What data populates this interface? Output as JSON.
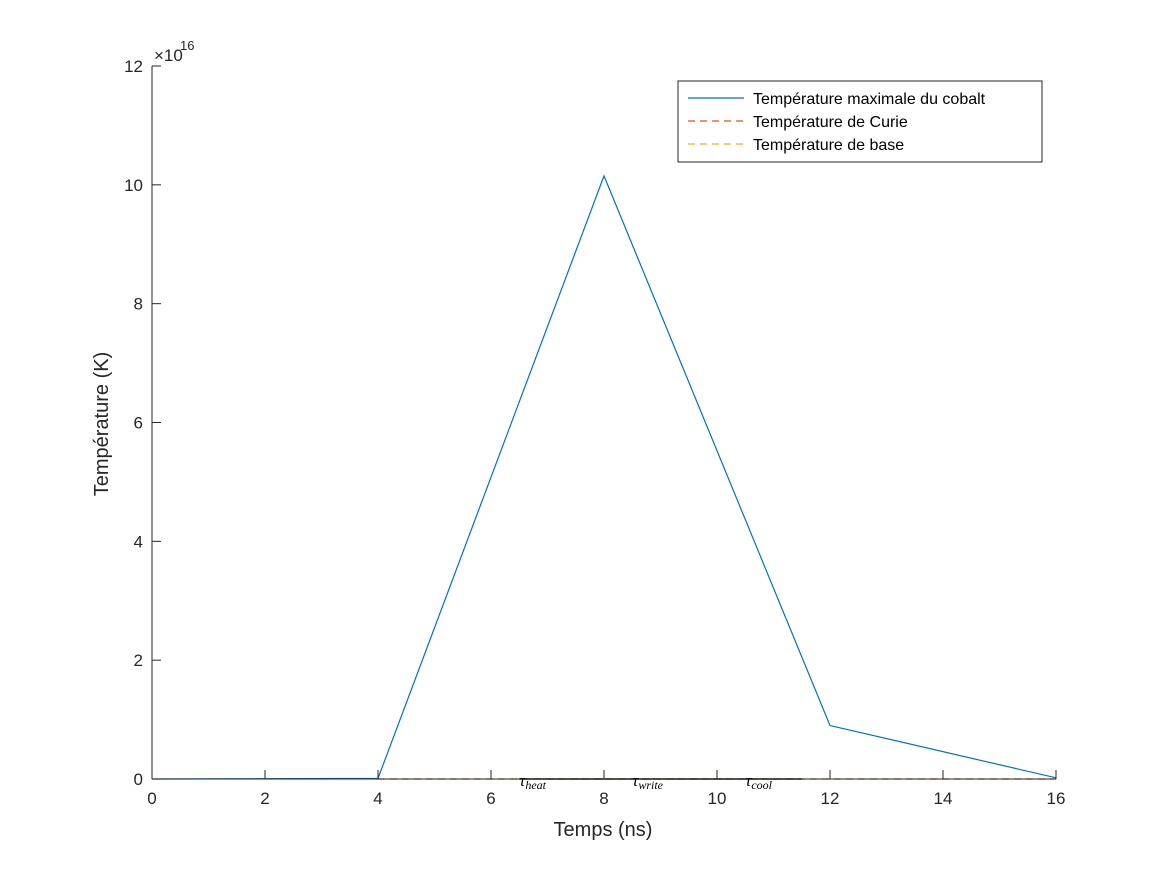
{
  "chart_data": {
    "type": "line",
    "xlabel": "Temps (ns)",
    "ylabel": "Température (K)",
    "xlim": [
      0,
      16
    ],
    "ylim": [
      0,
      12
    ],
    "y_multiplier": "×10",
    "y_exponent": "16",
    "xticks": [
      "0",
      "2",
      "4",
      "6",
      "8",
      "10",
      "12",
      "14",
      "16"
    ],
    "yticks": [
      "0",
      "2",
      "4",
      "6",
      "8",
      "10",
      "12"
    ],
    "grid": false,
    "legend_position": "top-right",
    "series": [
      {
        "name": "Température maximale du cobalt",
        "style": "solid",
        "color": "#0072BD",
        "x": [
          0,
          4,
          8,
          12,
          16
        ],
        "y": [
          0,
          0.01,
          10.15,
          0.9,
          0.02
        ]
      },
      {
        "name": "Température de Curie",
        "style": "dashed",
        "color": "#D95319",
        "x": [
          4,
          16
        ],
        "y": [
          0,
          0
        ]
      },
      {
        "name": "Température de base",
        "style": "dashed",
        "color": "#EDB120",
        "x": [
          4,
          16
        ],
        "y": [
          0,
          0
        ]
      }
    ],
    "annotations": [
      {
        "base": "τ",
        "sub": "heat",
        "x": 6.5
      },
      {
        "base": "τ",
        "sub": "write",
        "x": 8.5
      },
      {
        "base": "τ",
        "sub": "cool",
        "x": 10.5
      }
    ]
  }
}
